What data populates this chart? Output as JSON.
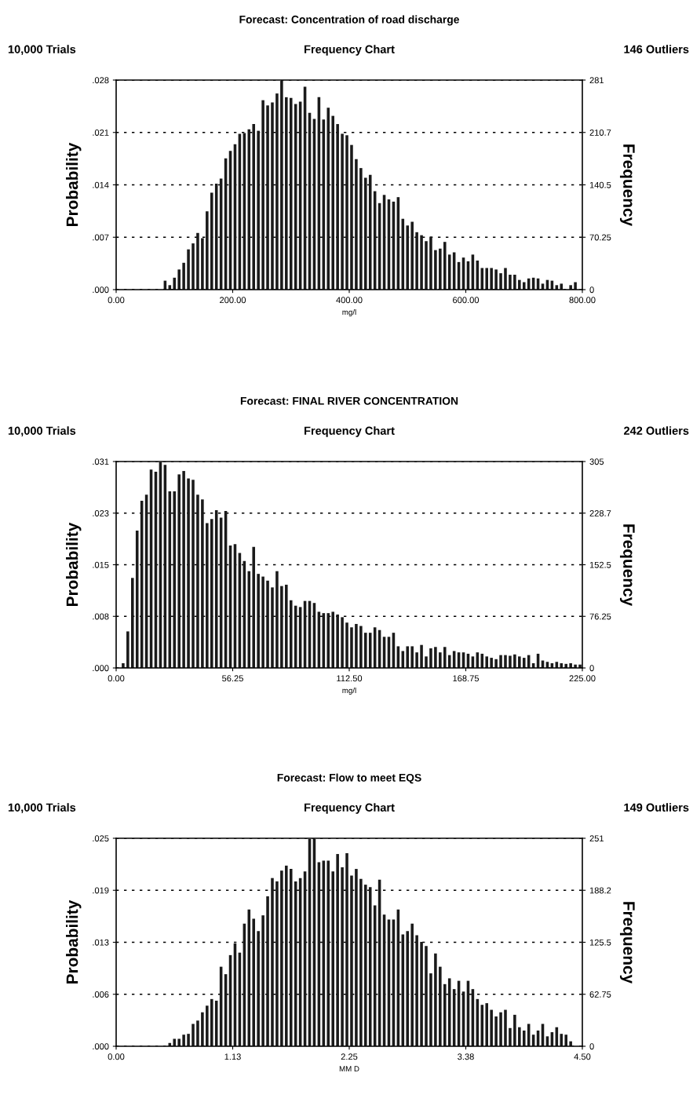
{
  "chart_data": [
    {
      "type": "histogram",
      "title": "Forecast: Concentration of road discharge",
      "subtitle": "Frequency Chart",
      "annotations": [
        "10,000 Trials",
        "146 Outliers"
      ],
      "xlabel": "mg/l",
      "ylabel": "Probability",
      "y2label": "Frequency",
      "color": "#1a1a1a",
      "bins": [
        0,
        8,
        16,
        24,
        32,
        40,
        48,
        56,
        64,
        72,
        80,
        88,
        96,
        104,
        112,
        120,
        128,
        136,
        144,
        152,
        160,
        168,
        176,
        184,
        192,
        200,
        208,
        216,
        224,
        232,
        240,
        248,
        256,
        264,
        272,
        280,
        288,
        296,
        304,
        312,
        320,
        328,
        336,
        344,
        352,
        360,
        368,
        376,
        384,
        392,
        400,
        408,
        416,
        424,
        432,
        440,
        448,
        456,
        464,
        472,
        480,
        488,
        496,
        504,
        512,
        520,
        528,
        536,
        544,
        552,
        560,
        568,
        576,
        584,
        592,
        600,
        608,
        616,
        624,
        632,
        640,
        648,
        656,
        664,
        672,
        680,
        688,
        696,
        704,
        712,
        720,
        728,
        736,
        744,
        752,
        760,
        768,
        776,
        784,
        792,
        800
      ],
      "values": [
        0,
        0,
        0,
        0,
        0,
        0,
        0,
        0,
        0,
        0,
        0.0012,
        0.0006,
        0.0016,
        0.0027,
        0.0036,
        0.0054,
        0.0062,
        0.0076,
        0.0069,
        0.0105,
        0.013,
        0.0142,
        0.0149,
        0.0176,
        0.0186,
        0.0195,
        0.0209,
        0.021,
        0.0215,
        0.0222,
        0.0213,
        0.0254,
        0.0247,
        0.0251,
        0.0263,
        0.028,
        0.0258,
        0.0257,
        0.0249,
        0.0252,
        0.0272,
        0.0237,
        0.0229,
        0.0258,
        0.0228,
        0.0244,
        0.0233,
        0.0222,
        0.0209,
        0.0207,
        0.0194,
        0.0175,
        0.0163,
        0.015,
        0.0154,
        0.0132,
        0.0116,
        0.0127,
        0.0121,
        0.0118,
        0.0124,
        0.0095,
        0.0086,
        0.0091,
        0.0077,
        0.0073,
        0.0065,
        0.0071,
        0.0053,
        0.0055,
        0.0064,
        0.0047,
        0.005,
        0.0037,
        0.0043,
        0.0038,
        0.0047,
        0.0039,
        0.0029,
        0.0029,
        0.0029,
        0.0027,
        0.0022,
        0.0029,
        0.002,
        0.002,
        0.0013,
        0.001,
        0.0015,
        0.0016,
        0.0015,
        0.0008,
        0.0013,
        0.0012,
        0.0006,
        0.0008,
        0,
        0.0006,
        0.001,
        0
      ],
      "xlim": [
        0,
        800
      ],
      "xticks": [
        {
          "value": 0,
          "label": "0.00"
        },
        {
          "value": 200,
          "label": "200.00"
        },
        {
          "value": 400,
          "label": "400.00"
        },
        {
          "value": 600,
          "label": "600.00"
        },
        {
          "value": 800,
          "label": "800.00"
        }
      ],
      "ylim": [
        0,
        0.0281
      ],
      "yticks": [
        {
          "value": 0,
          "label": ".000"
        },
        {
          "value": 0.007025,
          "label": ".007"
        },
        {
          "value": 0.01405,
          "label": ".014"
        },
        {
          "value": 0.021075,
          "label": ".021"
        },
        {
          "value": 0.0281,
          "label": ".028"
        }
      ],
      "y2lim": [
        0,
        281
      ],
      "y2ticks": [
        0,
        70.25,
        140.5,
        {
          "value": 210.75,
          "label": "210.7"
        },
        281
      ],
      "grid": "y"
    },
    {
      "type": "histogram",
      "title": "Forecast: FINAL RIVER CONCENTRATION",
      "subtitle": "Frequency Chart",
      "annotations": [
        "10,000 Trials",
        "242 Outliers"
      ],
      "xlabel": "mg/l",
      "ylabel": "Probability",
      "y2label": "Frequency",
      "color": "#1a1a1a",
      "bins": [
        0,
        2.25,
        4.5,
        6.75,
        9,
        11.25,
        13.5,
        15.75,
        18,
        20.25,
        22.5,
        24.75,
        27,
        29.25,
        31.5,
        33.75,
        36,
        38.25,
        40.5,
        42.75,
        45,
        47.25,
        49.5,
        51.75,
        54,
        56.25,
        58.5,
        60.75,
        63,
        65.25,
        67.5,
        69.75,
        72,
        74.25,
        76.5,
        78.75,
        81,
        83.25,
        85.5,
        87.75,
        90,
        92.25,
        94.5,
        96.75,
        99,
        101.25,
        103.5,
        105.75,
        108,
        110.25,
        112.5,
        114.75,
        117,
        119.25,
        121.5,
        123.75,
        126,
        128.25,
        130.5,
        132.75,
        135,
        137.25,
        139.5,
        141.75,
        144,
        146.25,
        148.5,
        150.75,
        153,
        155.25,
        157.5,
        159.75,
        162,
        164.25,
        166.5,
        168.75,
        171,
        173.25,
        175.5,
        177.75,
        180,
        182.25,
        184.5,
        186.75,
        189,
        191.25,
        193.5,
        195.75,
        198,
        200.25,
        202.5,
        204.75,
        207,
        209.25,
        211.5,
        213.75,
        216,
        218.25,
        220.5,
        222.75,
        225
      ],
      "values": [
        0,
        0.0007,
        0.0054,
        0.0133,
        0.0203,
        0.0247,
        0.0256,
        0.0293,
        0.029,
        0.0304,
        0.03,
        0.0261,
        0.0261,
        0.0286,
        0.0291,
        0.028,
        0.0278,
        0.0256,
        0.0249,
        0.0214,
        0.022,
        0.0233,
        0.0222,
        0.0232,
        0.0181,
        0.0183,
        0.017,
        0.0158,
        0.0143,
        0.0179,
        0.0139,
        0.0135,
        0.0129,
        0.0119,
        0.0143,
        0.0121,
        0.0123,
        0.01,
        0.0092,
        0.009,
        0.0099,
        0.0099,
        0.0096,
        0.0083,
        0.0081,
        0.0081,
        0.0083,
        0.0079,
        0.0075,
        0.0067,
        0.006,
        0.0065,
        0.0062,
        0.0052,
        0.0052,
        0.006,
        0.0056,
        0.0046,
        0.0046,
        0.0052,
        0.0032,
        0.0025,
        0.0032,
        0.0032,
        0.0023,
        0.0034,
        0.0017,
        0.0029,
        0.0031,
        0.0023,
        0.0031,
        0.0019,
        0.0025,
        0.0023,
        0.0023,
        0.0021,
        0.0017,
        0.0023,
        0.0021,
        0.0017,
        0.0015,
        0.0013,
        0.0019,
        0.0019,
        0.0018,
        0.002,
        0.0017,
        0.0015,
        0.0019,
        0.0007,
        0.0021,
        0.0011,
        0.0009,
        0.0007,
        0.0009,
        0.0007,
        0.0006,
        0.0007,
        0.0005,
        0.0005
      ],
      "xlim": [
        0,
        225
      ],
      "xticks": [
        {
          "value": 0,
          "label": "0.00"
        },
        {
          "value": 56.25,
          "label": "56.25"
        },
        {
          "value": 112.5,
          "label": "112.50"
        },
        {
          "value": 168.75,
          "label": "168.75"
        },
        {
          "value": 225,
          "label": "225.00"
        }
      ],
      "ylim": [
        0,
        0.0305
      ],
      "yticks": [
        {
          "value": 0,
          "label": ".000"
        },
        {
          "value": 0.007625,
          "label": ".008"
        },
        {
          "value": 0.01525,
          "label": ".015"
        },
        {
          "value": 0.022875,
          "label": ".023"
        },
        {
          "value": 0.0305,
          "label": ".031"
        }
      ],
      "y2lim": [
        0,
        305
      ],
      "y2ticks": [
        0,
        76.25,
        152.5,
        {
          "value": 228.75,
          "label": "228.7"
        },
        305
      ],
      "grid": "y"
    },
    {
      "type": "histogram",
      "title": "Forecast: Flow to meet EQS",
      "subtitle": "Frequency Chart",
      "annotations": [
        "10,000 Trials",
        "149 Outliers"
      ],
      "xlabel": "MM D",
      "ylabel": "Probability",
      "y2label": "Frequency",
      "color": "#1a1a1a",
      "bins": [
        0,
        0.045,
        0.09,
        0.135,
        0.18,
        0.225,
        0.27,
        0.315,
        0.36,
        0.405,
        0.45,
        0.495,
        0.54,
        0.585,
        0.63,
        0.675,
        0.72,
        0.765,
        0.81,
        0.855,
        0.9,
        0.945,
        0.99,
        1.035,
        1.08,
        1.125,
        1.17,
        1.215,
        1.26,
        1.305,
        1.35,
        1.395,
        1.44,
        1.485,
        1.53,
        1.575,
        1.62,
        1.665,
        1.71,
        1.755,
        1.8,
        1.845,
        1.89,
        1.935,
        1.98,
        2.025,
        2.07,
        2.115,
        2.16,
        2.205,
        2.25,
        2.295,
        2.34,
        2.385,
        2.43,
        2.475,
        2.52,
        2.565,
        2.61,
        2.655,
        2.7,
        2.745,
        2.79,
        2.835,
        2.88,
        2.925,
        2.97,
        3.015,
        3.06,
        3.105,
        3.15,
        3.195,
        3.24,
        3.285,
        3.33,
        3.375,
        3.42,
        3.465,
        3.51,
        3.555,
        3.6,
        3.645,
        3.69,
        3.735,
        3.78,
        3.825,
        3.87,
        3.915,
        3.96,
        4.005,
        4.05,
        4.095,
        4.14,
        4.185,
        4.23,
        4.275,
        4.32,
        4.365,
        4.41,
        4.455,
        4.5
      ],
      "values": [
        0,
        0,
        0,
        0,
        0,
        0,
        0,
        0,
        0,
        0,
        0,
        0.0004,
        0.0009,
        0.0009,
        0.0014,
        0.0015,
        0.0027,
        0.0031,
        0.0041,
        0.0049,
        0.0057,
        0.0055,
        0.0096,
        0.0087,
        0.011,
        0.0124,
        0.0113,
        0.0148,
        0.0165,
        0.0154,
        0.0139,
        0.0158,
        0.0181,
        0.0203,
        0.0199,
        0.0212,
        0.0218,
        0.0214,
        0.0199,
        0.0203,
        0.0211,
        0.025,
        0.025,
        0.0222,
        0.0224,
        0.0224,
        0.0211,
        0.0232,
        0.0216,
        0.0233,
        0.0206,
        0.0214,
        0.0202,
        0.0195,
        0.0192,
        0.017,
        0.0201,
        0.0159,
        0.0153,
        0.0153,
        0.0165,
        0.0135,
        0.0139,
        0.0148,
        0.0134,
        0.0126,
        0.0121,
        0.0088,
        0.0112,
        0.0096,
        0.0075,
        0.0082,
        0.0069,
        0.0079,
        0.0066,
        0.0079,
        0.0069,
        0.0057,
        0.005,
        0.0052,
        0.0044,
        0.0036,
        0.0041,
        0.0044,
        0.0022,
        0.0038,
        0.0023,
        0.0019,
        0.0027,
        0.0014,
        0.0019,
        0.0027,
        0.0012,
        0.0017,
        0.0023,
        0.0015,
        0.0014,
        0.0006,
        0,
        0
      ],
      "xlim": [
        0,
        4.5
      ],
      "xticks": [
        {
          "value": 0,
          "label": "0.00"
        },
        {
          "value": 1.125,
          "label": "1.13"
        },
        {
          "value": 2.25,
          "label": "2.25"
        },
        {
          "value": 3.375,
          "label": "3.38"
        },
        {
          "value": 4.5,
          "label": "4.50"
        }
      ],
      "ylim": [
        0,
        0.0251
      ],
      "yticks": [
        {
          "value": 0,
          "label": ".000"
        },
        {
          "value": 0.006275,
          "label": ".006"
        },
        {
          "value": 0.01255,
          "label": ".013"
        },
        {
          "value": 0.018825,
          "label": ".019"
        },
        {
          "value": 0.0251,
          "label": ".025"
        }
      ],
      "y2lim": [
        0,
        251
      ],
      "y2ticks": [
        0,
        62.75,
        125.5,
        {
          "value": 188.25,
          "label": "188.2"
        },
        251
      ],
      "grid": "y"
    }
  ]
}
